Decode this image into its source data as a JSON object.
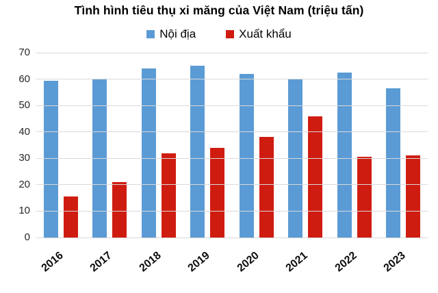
{
  "title": "Tình hình tiêu thụ xi măng của Việt Nam (triệu tấn)",
  "chart_data": {
    "type": "bar",
    "title": "Tình hình tiêu thụ xi măng của Việt Nam (triệu tấn)",
    "categories": [
      "2016",
      "2017",
      "2018",
      "2019",
      "2020",
      "2021",
      "2022",
      "2023"
    ],
    "series": [
      {
        "name": "Nội địa",
        "color": "#5b9bd5",
        "values": [
          59.3,
          60,
          64,
          65,
          62,
          60,
          62.5,
          56.5
        ]
      },
      {
        "name": "Xuất khẩu",
        "color": "#cf1c10",
        "values": [
          15.5,
          21,
          32,
          34,
          38,
          46,
          30.5,
          31
        ]
      }
    ],
    "xlabel": "",
    "ylabel": "",
    "ylim": [
      0,
      70
    ],
    "yticks": [
      0,
      10,
      20,
      30,
      40,
      50,
      60,
      70
    ],
    "grid": true,
    "legend_position": "top"
  },
  "colors": {
    "grid": "#d9d9d9",
    "axis_text": "#262626",
    "background": "#ffffff"
  }
}
